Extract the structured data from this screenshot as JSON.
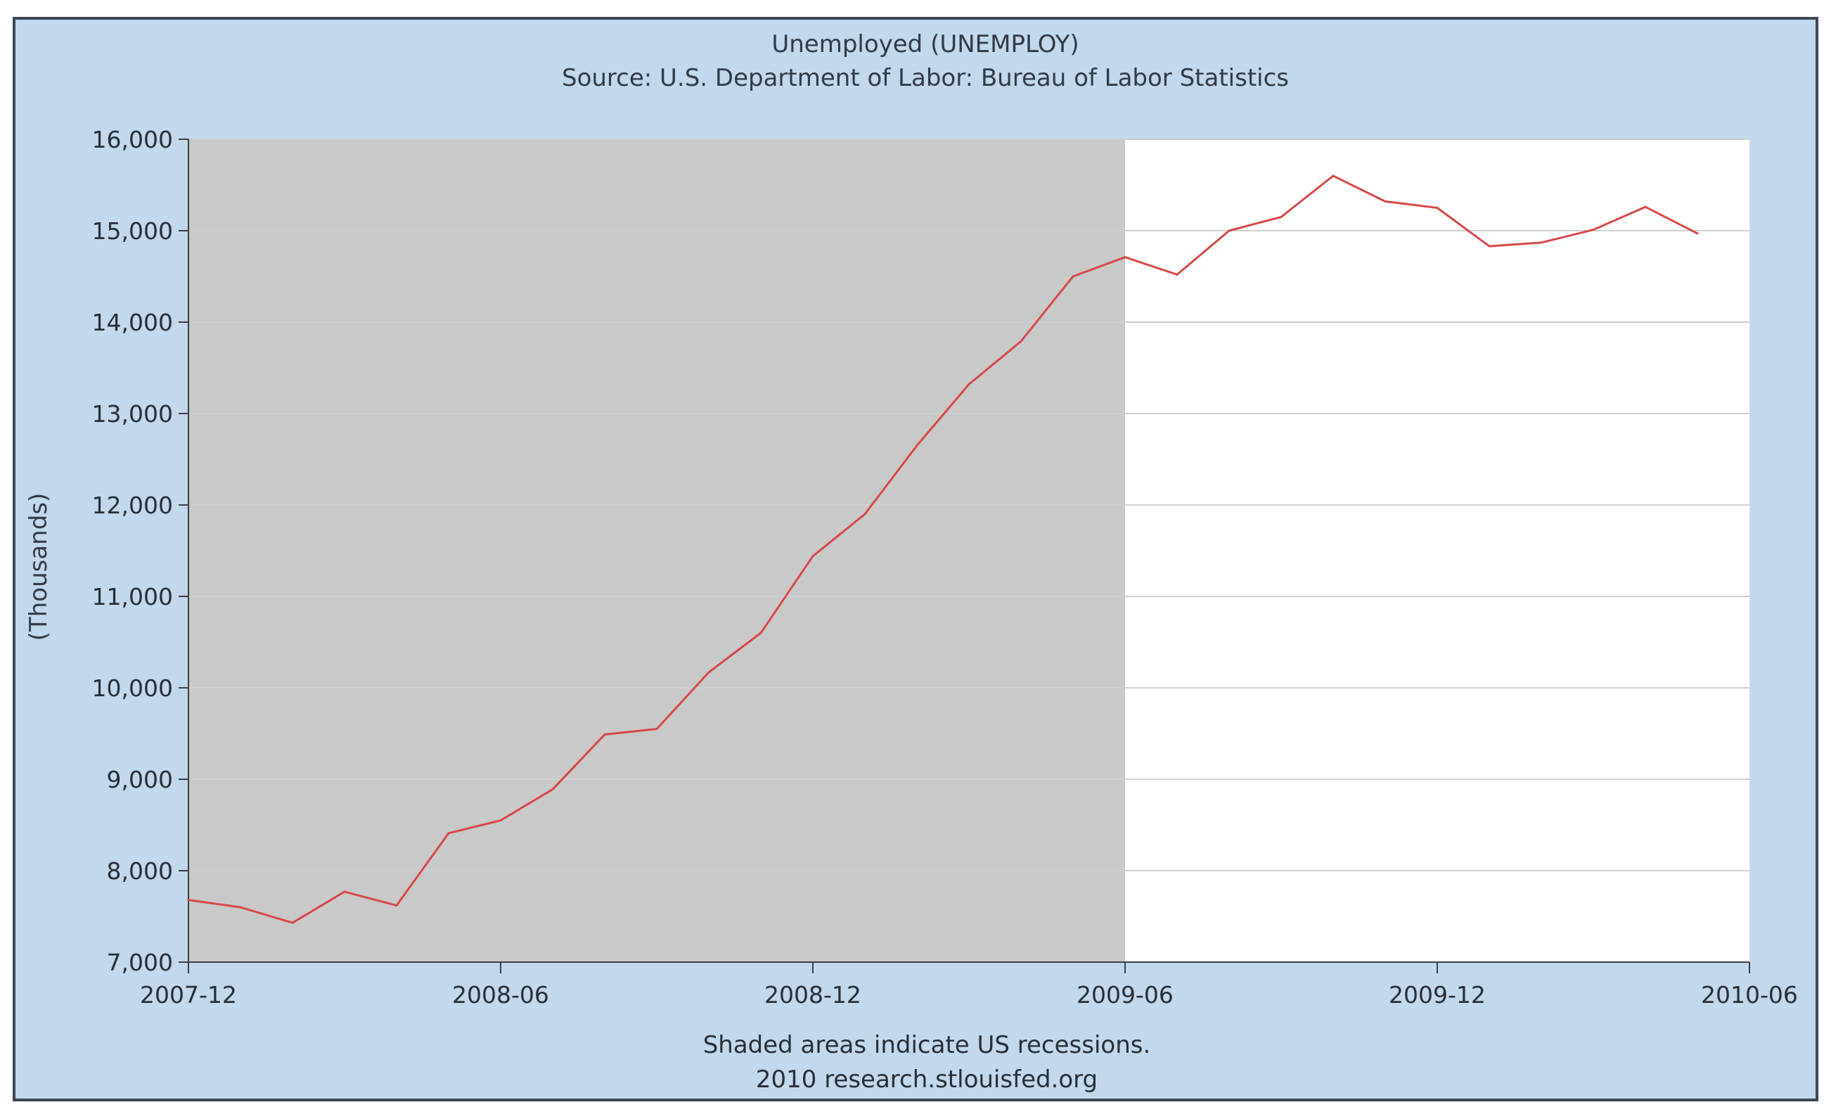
{
  "chart_data": {
    "type": "line",
    "title": "Unemployed (UNEMPLOY)",
    "subtitle": "Source: U.S. Department of Labor: Bureau of Labor Statistics",
    "ylabel": "(Thousands)",
    "xlabel": "",
    "ylim": [
      7000,
      16000
    ],
    "xlim": [
      "2007-12",
      "2010-06"
    ],
    "y_ticks": [
      "16,000",
      "15,000",
      "14,000",
      "13,000",
      "12,000",
      "11,000",
      "10,000",
      "9,000",
      "8,000",
      "7,000"
    ],
    "x_ticks": [
      "2007-12",
      "2008-06",
      "2008-12",
      "2009-06",
      "2009-12",
      "2010-06"
    ],
    "grid": "horizontal",
    "recession_shading": {
      "start": "2007-12",
      "end": "2009-06"
    },
    "notes": [
      "Shaded areas indicate US recessions.",
      "2010 research.stlouisfed.org"
    ],
    "series": [
      {
        "x": [
          "2007-12",
          "2008-01",
          "2008-02",
          "2008-03",
          "2008-04",
          "2008-05",
          "2008-06",
          "2008-07",
          "2008-08",
          "2008-09",
          "2008-10",
          "2008-11",
          "2008-12",
          "2009-01",
          "2009-02",
          "2009-03",
          "2009-04",
          "2009-05",
          "2009-06",
          "2009-07",
          "2009-08",
          "2009-09",
          "2009-10",
          "2009-11",
          "2009-12",
          "2010-01",
          "2010-02",
          "2010-03",
          "2010-04",
          "2010-05"
        ],
        "values": [
          7680,
          7600,
          7430,
          7770,
          7620,
          8410,
          8550,
          8890,
          9490,
          9550,
          10170,
          10600,
          11440,
          11900,
          12650,
          13320,
          13790,
          14500,
          14710,
          14520,
          15000,
          15150,
          15600,
          15320,
          15250,
          14830,
          14870,
          15010,
          15260,
          14970
        ],
        "color": "#d84848"
      }
    ],
    "colors": {
      "frame_background": "#c2d8ec",
      "plot_background": "#ffffff",
      "recession_fill": "#c9c9c9",
      "gridline": "#cfcfcf",
      "line": "#d84848"
    }
  }
}
